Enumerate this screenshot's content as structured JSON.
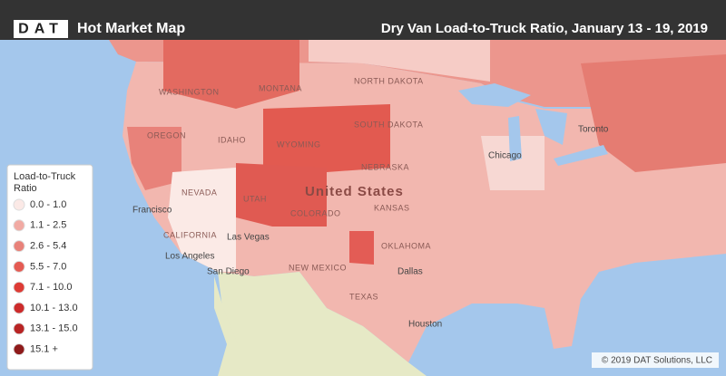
{
  "header": {
    "logo": "DAT",
    "title": "Hot Market Map",
    "subtitle": "Dry Van Load-to-Truck Ratio, January 13 - 19, 2019"
  },
  "legend": {
    "title": "Load-to-Truck Ratio",
    "items": [
      {
        "label": "0.0 - 1.0",
        "color": "#fbe9e6"
      },
      {
        "label": "1.1 - 2.5",
        "color": "#f1aaa3"
      },
      {
        "label": "2.6 - 5.4",
        "color": "#e8827a"
      },
      {
        "label": "5.5 - 7.0",
        "color": "#e45b53"
      },
      {
        "label": "7.1 - 10.0",
        "color": "#dd3b35"
      },
      {
        "label": "10.1 - 13.0",
        "color": "#cc2b2b"
      },
      {
        "label": "13.1 - 15.0",
        "color": "#b82424"
      },
      {
        "label": "15.1 +",
        "color": "#8e1a1a"
      }
    ]
  },
  "map_labels": [
    "WASHINGTON",
    "OREGON",
    "IDAHO",
    "MONTANA",
    "NORTH DAKOTA",
    "SOUTH DAKOTA",
    "WYOMING",
    "NEBRASKA",
    "NEVADA",
    "UTAH",
    "COLORADO",
    "KANSAS",
    "CALIFORNIA",
    "Las Vegas",
    "Los Angeles",
    "San Diego",
    "Francisco",
    "NEW MEXICO",
    "OKLAHOMA",
    "TEXAS",
    "Dallas",
    "Houston",
    "Chicago",
    "United States",
    "Toronto"
  ],
  "copyright": "© 2019 DAT Solutions, LLC"
}
